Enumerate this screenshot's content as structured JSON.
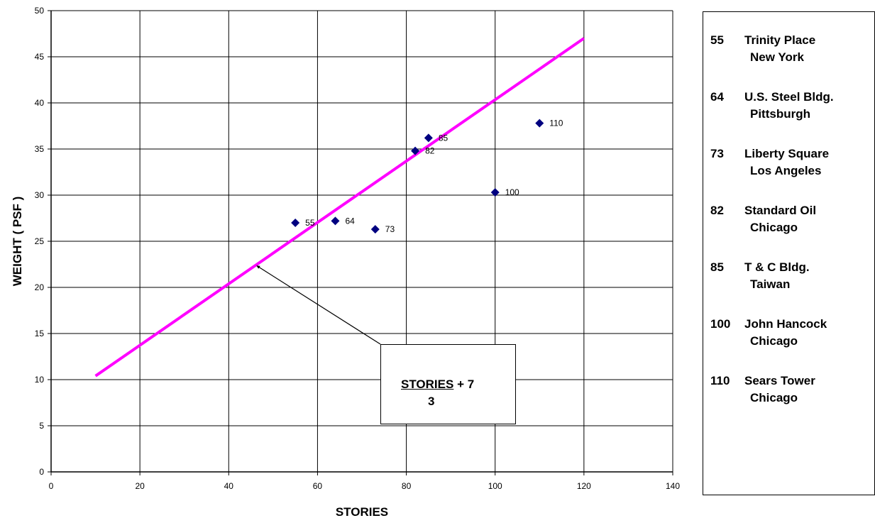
{
  "chart_data": {
    "type": "scatter",
    "xlabel": "STORIES",
    "ylabel": "WEIGHT ( PSF )",
    "xlim": [
      0,
      140
    ],
    "ylim": [
      0,
      50
    ],
    "x_ticks": [
      0,
      20,
      40,
      60,
      80,
      100,
      120,
      140
    ],
    "y_ticks": [
      0,
      5,
      10,
      15,
      20,
      25,
      30,
      35,
      40,
      45,
      50
    ],
    "grid": true,
    "marker_color": "#000080",
    "line_color": "#ff00ff",
    "points": [
      {
        "x": 55,
        "y": 27.0,
        "label": "55"
      },
      {
        "x": 64,
        "y": 27.2,
        "label": "64"
      },
      {
        "x": 73,
        "y": 26.3,
        "label": "73"
      },
      {
        "x": 82,
        "y": 34.8,
        "label": "82"
      },
      {
        "x": 85,
        "y": 36.2,
        "label": "85"
      },
      {
        "x": 100,
        "y": 30.3,
        "label": "100"
      },
      {
        "x": 110,
        "y": 37.8,
        "label": "110"
      }
    ],
    "trend_line": {
      "x": [
        10,
        120
      ],
      "y": [
        10.4,
        47.0
      ]
    },
    "annotation": {
      "numerator": "STORIES",
      "plus": "+ 7",
      "denominator": "3",
      "arrow_target": {
        "x": 46,
        "y": 22.5
      }
    },
    "legend_entries": [
      {
        "num": "55",
        "name": "Trinity Place",
        "city": "New York"
      },
      {
        "num": "64",
        "name": "U.S. Steel Bldg.",
        "city": "Pittsburgh"
      },
      {
        "num": "73",
        "name": "Liberty Square",
        "city": "Los Angeles"
      },
      {
        "num": "82",
        "name": "Standard Oil",
        "city": "Chicago"
      },
      {
        "num": "85",
        "name": "T & C Bldg.",
        "city": "Taiwan"
      },
      {
        "num": "100",
        "name": "John Hancock",
        "city": "Chicago"
      },
      {
        "num": "110",
        "name": "Sears Tower",
        "city": "Chicago"
      }
    ]
  }
}
